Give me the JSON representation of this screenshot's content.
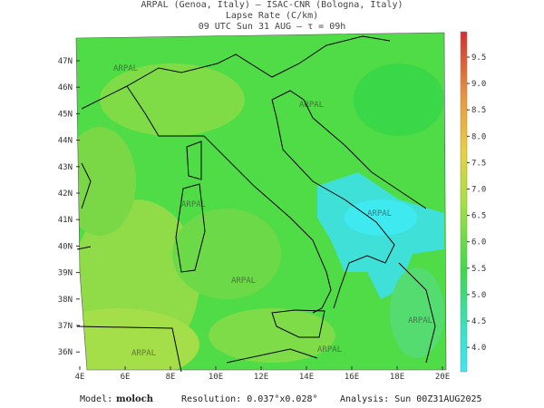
{
  "header": {
    "line1": "ARPAL (Genoa, Italy)  –  ISAC-CNR (Bologna, Italy)",
    "line2": "Lapse Rate (C/km)",
    "line3": "09 UTC Sun 31 AUG  –  τ = 09h"
  },
  "map": {
    "lat_labels": [
      "47N",
      "46N",
      "45N",
      "44N",
      "43N",
      "42N",
      "41N",
      "40N",
      "39N",
      "38N",
      "37N",
      "36N"
    ],
    "lon_labels": [
      "4E",
      "6E",
      "8E",
      "10E",
      "12E",
      "14E",
      "16E",
      "18E",
      "20E"
    ],
    "watermark": "ARPAL"
  },
  "colorbar": {
    "labels": [
      "9.5",
      "9.0",
      "8.5",
      "8.0",
      "7.5",
      "7.0",
      "6.5",
      "6.0",
      "5.5",
      "5.0",
      "4.5",
      "4.0"
    ]
  },
  "footer": {
    "model_label": "Model:",
    "model": "moloch",
    "resolution": "Resolution: 0.037°x0.028°",
    "analysis": "Analysis: Sun 00Z31AUG2025"
  }
}
